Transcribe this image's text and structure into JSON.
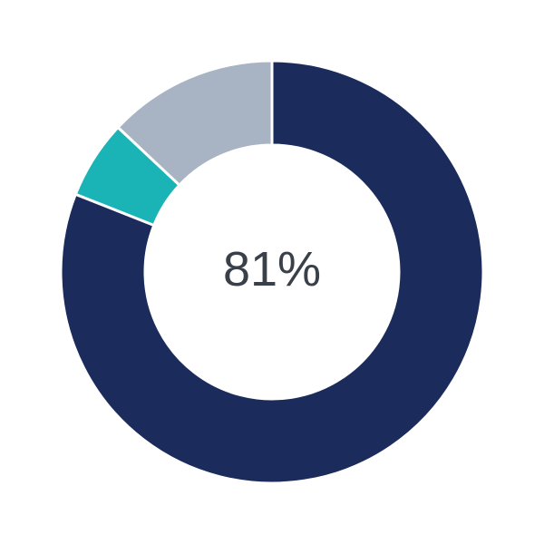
{
  "chart_data": {
    "type": "pie",
    "variant": "donut",
    "center_label": "81%",
    "start": "top",
    "direction": "clockwise",
    "slices": [
      {
        "value": 81,
        "color": "#1b2b5b"
      },
      {
        "value": 6,
        "color": "#1ab4b6"
      },
      {
        "value": 13,
        "color": "#a8b3c3"
      }
    ]
  }
}
